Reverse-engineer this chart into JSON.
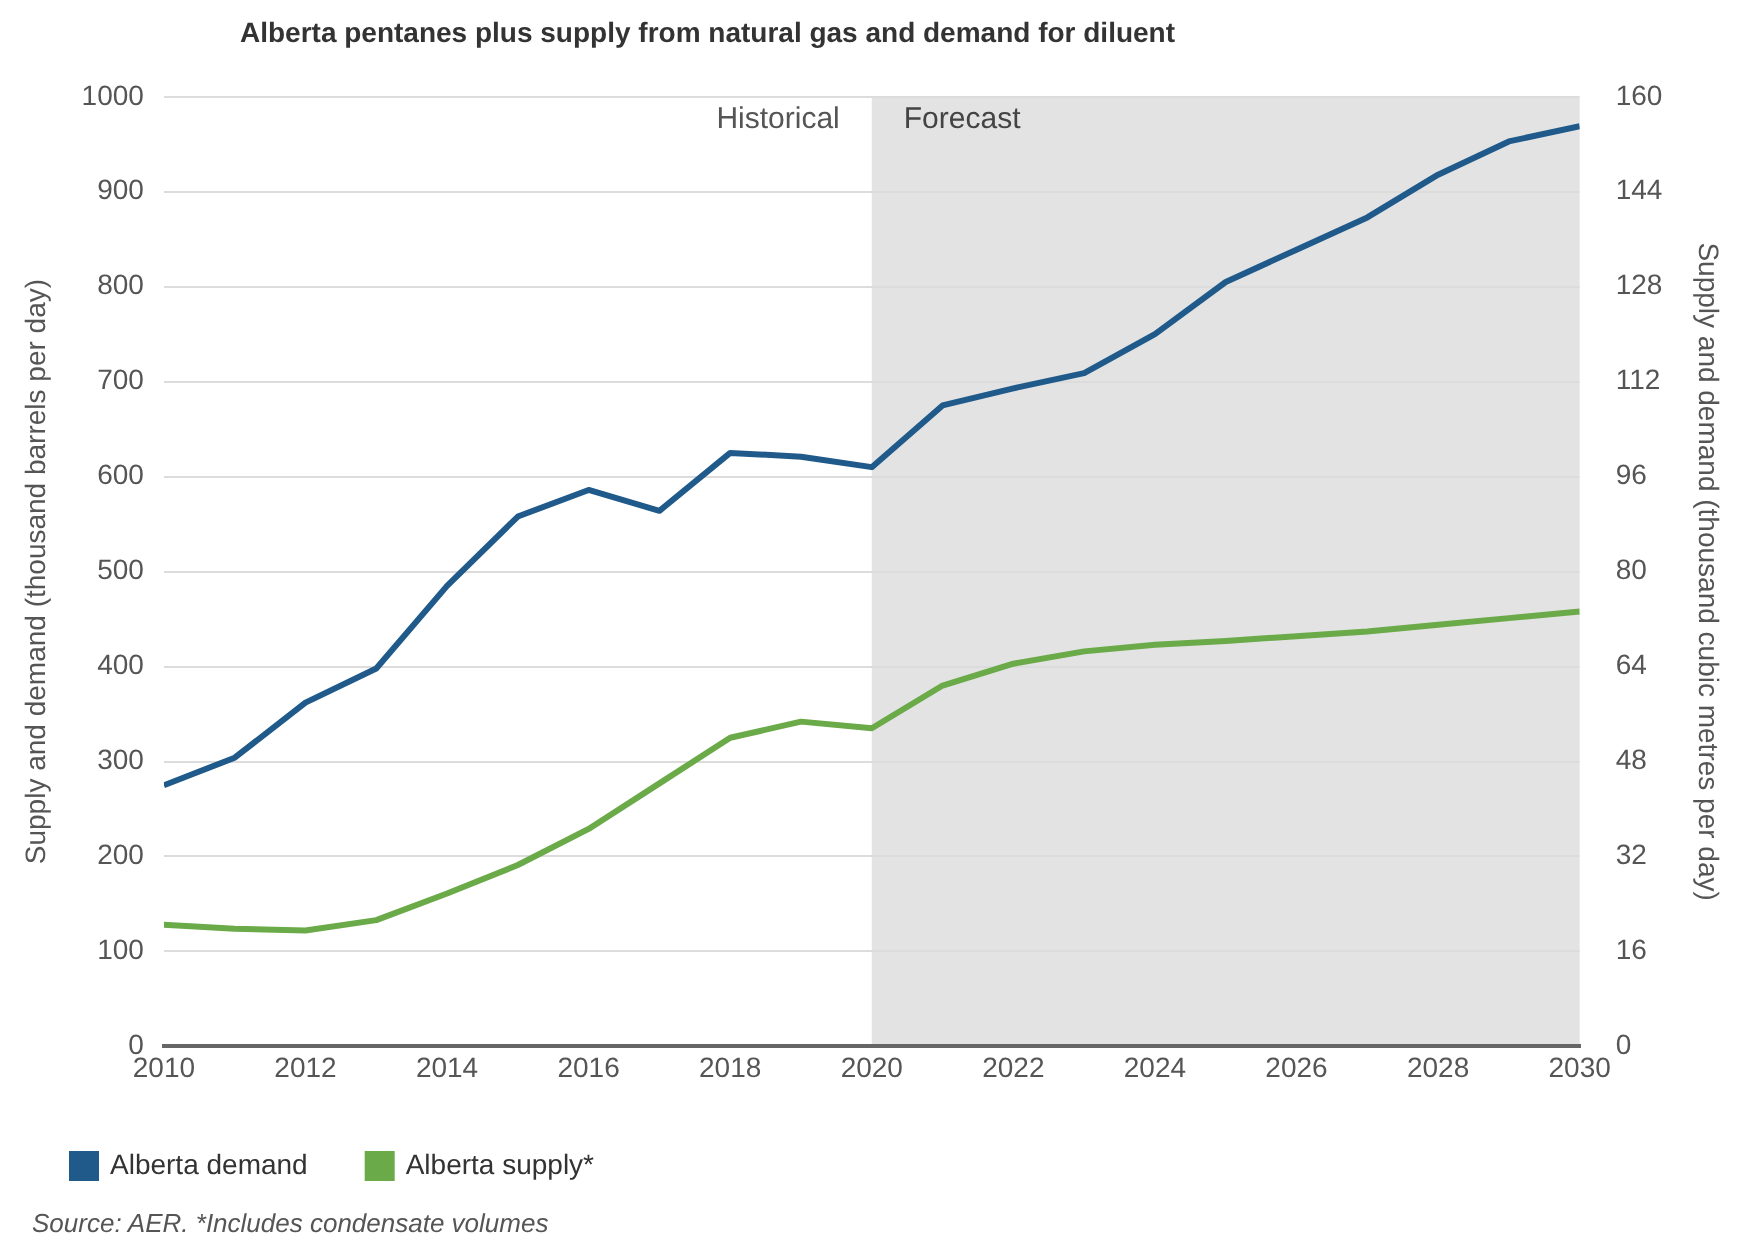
{
  "chart_data": {
    "type": "line",
    "title": "Alberta pentanes plus supply from natural gas and demand for diluent",
    "xlabel": null,
    "ylabel": "Supply and demand (thousand barrels per day)",
    "y2label": "Supply and demand (thousand cubic metres per day)",
    "x": [
      2010,
      2011,
      2012,
      2013,
      2014,
      2015,
      2016,
      2017,
      2018,
      2019,
      2020,
      2021,
      2022,
      2023,
      2024,
      2025,
      2026,
      2027,
      2028,
      2029,
      2030
    ],
    "series": [
      {
        "name": "Alberta demand",
        "color": "#1f5a8a",
        "values": [
          275,
          304,
          362,
          398,
          485,
          558,
          586,
          564,
          625,
          621,
          610,
          675,
          693,
          709,
          750,
          805,
          839,
          873,
          918,
          953,
          969
        ]
      },
      {
        "name": "Alberta supply*",
        "color": "#6aaa48",
        "values": [
          128,
          124,
          122,
          133,
          161,
          191,
          229,
          277,
          325,
          342,
          335,
          380,
          403,
          416,
          423,
          427,
          432,
          437,
          444,
          451,
          458
        ]
      }
    ],
    "xlim": [
      2010,
      2030
    ],
    "xticks": [
      2010,
      2012,
      2014,
      2016,
      2018,
      2020,
      2022,
      2024,
      2026,
      2028,
      2030
    ],
    "ylim": [
      0,
      1000
    ],
    "yticks": [
      0,
      100,
      200,
      300,
      400,
      500,
      600,
      700,
      800,
      900,
      1000
    ],
    "y2lim": [
      0,
      160
    ],
    "y2ticks": [
      0,
      16,
      32,
      48,
      64,
      80,
      96,
      112,
      128,
      144,
      160
    ],
    "bands": [
      {
        "axis": "x",
        "from": 2020,
        "to": 2030,
        "label": "Forecast",
        "color": "#e3e3e3"
      }
    ],
    "annotations": [
      {
        "text": "Historical",
        "x": 2020,
        "y": 1000
      },
      "Source: AER. *Includes condensate volumes"
    ],
    "grid": "y",
    "legend": "bottom left",
    "marker": "none",
    "line_style": "solid"
  }
}
